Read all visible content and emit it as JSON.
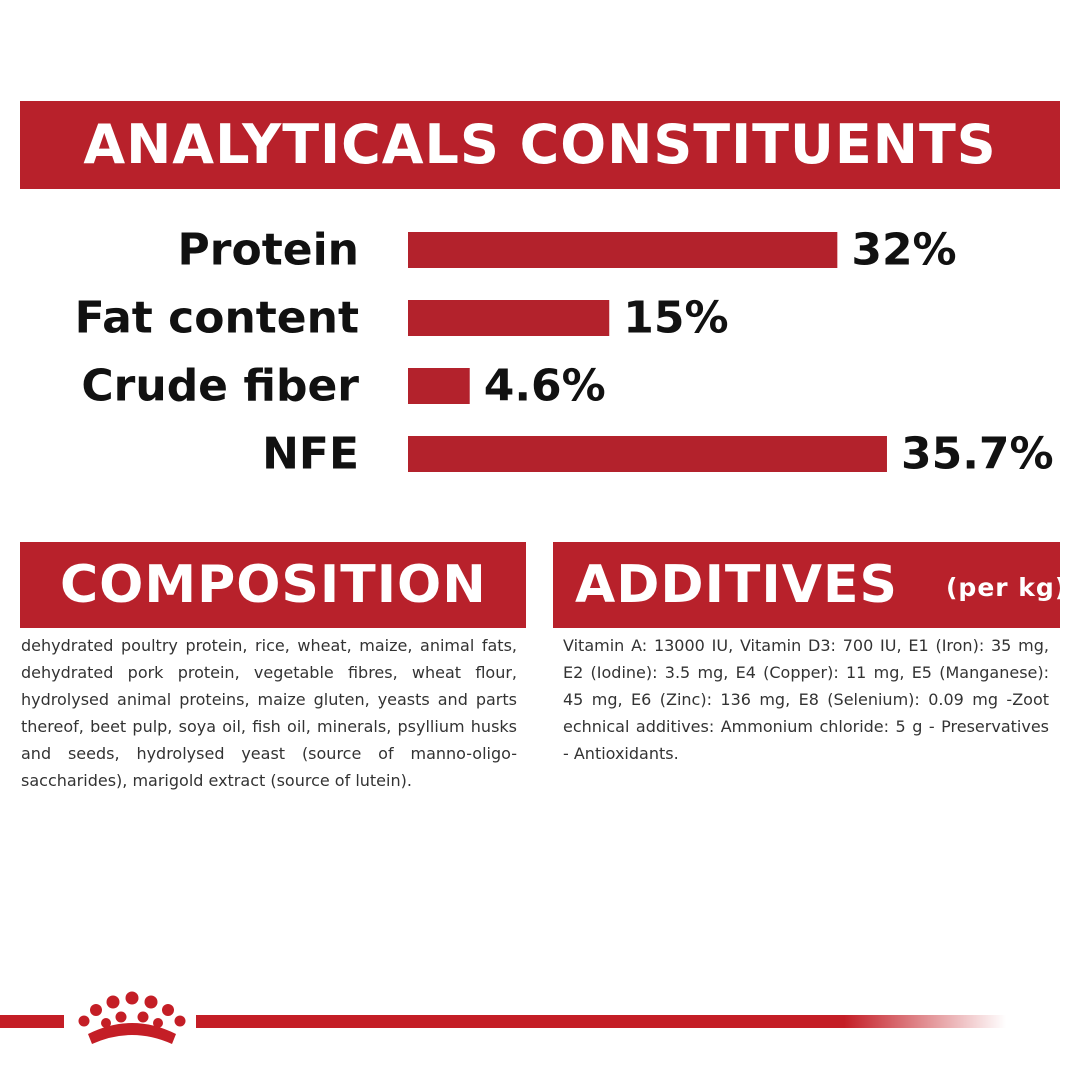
{
  "analytics": {
    "title": "ANALYTICALS CONSTITUENTS"
  },
  "chart_data": {
    "type": "bar",
    "orientation": "horizontal",
    "categories": [
      "Protein",
      "Fat content",
      "Crude fiber",
      "NFE"
    ],
    "values": [
      32,
      15,
      4.6,
      35.7
    ],
    "value_labels": [
      "32%",
      "15%",
      "4.6%",
      "35.7%"
    ],
    "unit": "%",
    "xlim": [
      0,
      36
    ],
    "bar_color": "#b3222c",
    "grid": false,
    "legend": "none"
  },
  "composition": {
    "title": "COMPOSITION",
    "text": "dehydrated poultry protein, rice, wheat, maize, animal fats, dehydrated pork protein, vegetable fibres, wheat flour, hydrolysed animal proteins, maize gluten, yeasts and parts thereof, beet pulp, soya oil, fish oil, minerals, psyllium husks and seeds, hydrolysed yeast (source of manno-oligo-saccharides), marigold extract (source of lutein)."
  },
  "additives": {
    "title": "ADDITIVES",
    "unit": "(per kg)",
    "text": "Vitamin A: 13000 IU, Vitamin D3: 700 IU, E1 (Iron): 35 mg, E2 (Iodine): 3.5 mg, E4 (Copper): 11 mg, E5 (Manganese): 45 mg, E6 (Zinc): 136 mg, E8 (Selenium): 0.09 mg -Zoot echnical additives: Ammonium chloride: 5 g - Preservatives - Antioxidants."
  },
  "footer": {
    "logo_icon": "crown-icon",
    "accent_color": "#c41e26"
  }
}
